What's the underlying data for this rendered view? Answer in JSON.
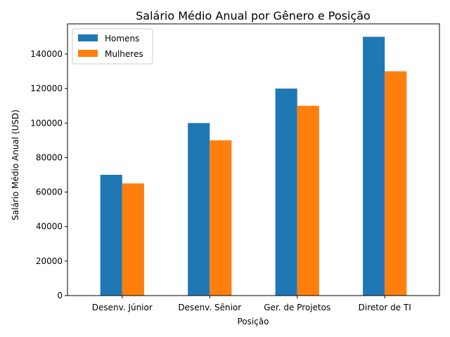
{
  "chart_data": {
    "type": "bar",
    "title": "Salário Médio Anual por Gênero e Posição",
    "xlabel": "Posição",
    "ylabel": "Salário Médio Anual (USD)",
    "categories": [
      "Desenv. Júnior",
      "Desenv. Sênior",
      "Ger. de Projetos",
      "Diretor de TI"
    ],
    "series": [
      {
        "name": "Homens",
        "values": [
          70000,
          100000,
          120000,
          150000
        ],
        "color": "#1f77b4"
      },
      {
        "name": "Mulheres",
        "values": [
          65000,
          90000,
          110000,
          130000
        ],
        "color": "#ff7f0e"
      }
    ],
    "ylim": [
      0,
      157500
    ],
    "yticks": [
      0,
      20000,
      40000,
      60000,
      80000,
      100000,
      120000,
      140000
    ],
    "grid": false,
    "legend_position": "top-left"
  }
}
